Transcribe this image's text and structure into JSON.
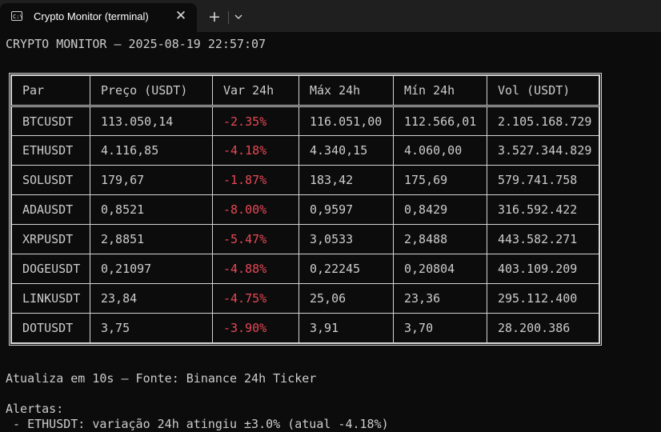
{
  "window": {
    "tab_title": "Crypto Monitor (terminal)",
    "tab_icon_glyph": "C:\\",
    "close_glyph": "✕",
    "new_tab_glyph": "+"
  },
  "header_line": "CRYPTO MONITOR — 2025-08-19 22:57:07",
  "table": {
    "columns": [
      "Par",
      "Preço (USDT)",
      "Var 24h",
      "Máx 24h",
      "Mín 24h",
      "Vol (USDT)"
    ],
    "rows": [
      [
        "BTCUSDT",
        "113.050,14",
        "-2.35%",
        "116.051,00",
        "112.566,01",
        "2.105.168.729"
      ],
      [
        "ETHUSDT",
        "4.116,85",
        "-4.18%",
        "4.340,15",
        "4.060,00",
        "3.527.344.829"
      ],
      [
        "SOLUSDT",
        "179,67",
        "-1.87%",
        "183,42",
        "175,69",
        "579.741.758"
      ],
      [
        "ADAUSDT",
        "0,8521",
        "-8.00%",
        "0,9597",
        "0,8429",
        "316.592.422"
      ],
      [
        "XRPUSDT",
        "2,8851",
        "-5.47%",
        "3,0533",
        "2,8488",
        "443.582.271"
      ],
      [
        "DOGEUSDT",
        "0,21097",
        "-4.88%",
        "0,22245",
        "0,20804",
        "403.109.209"
      ],
      [
        "LINKUSDT",
        "23,84",
        "-4.75%",
        "25,06",
        "23,36",
        "295.112.400"
      ],
      [
        "DOTUSDT",
        "3,75",
        "-3.90%",
        "3,91",
        "3,70",
        "28.200.386"
      ]
    ],
    "negative_color": "#e74856"
  },
  "footer_line": "Atualiza em 10s — Fonte: Binance 24h Ticker",
  "alerts_heading": "Alertas:",
  "alerts": [
    " - ETHUSDT: variação 24h atingiu ±3.0% (atual -4.18%)"
  ]
}
